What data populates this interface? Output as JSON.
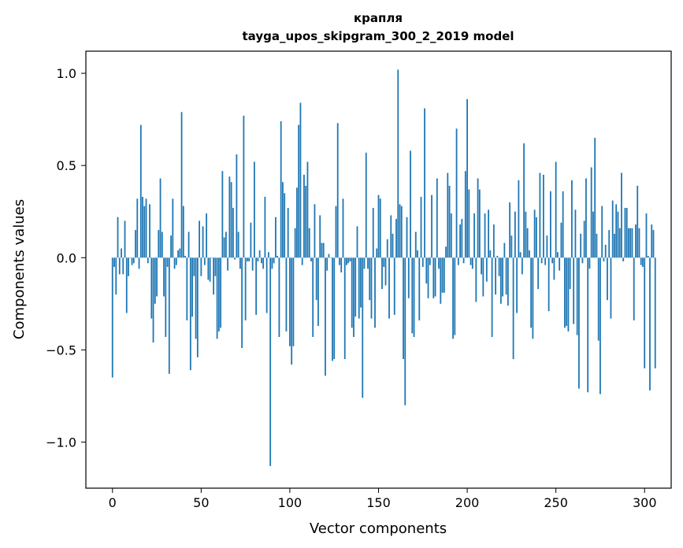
{
  "chart_data": {
    "type": "bar",
    "title": "крапля",
    "subtitle": "tayga_upos_skipgram_300_2_2019 model",
    "xlabel": "Vector components",
    "ylabel": "Components values",
    "xlim": [
      -15,
      315
    ],
    "ylim": [
      -1.25,
      1.12
    ],
    "xticks": [
      0,
      50,
      100,
      150,
      200,
      250,
      300
    ],
    "yticks": [
      -1.0,
      -0.5,
      0.0,
      0.5,
      1.0
    ],
    "xtick_labels": [
      "0",
      "50",
      "100",
      "150",
      "200",
      "250",
      "300"
    ],
    "ytick_labels": [
      "−1.0",
      "−0.5",
      "0.0",
      "0.5",
      "1.0"
    ],
    "bar_color": "#1f77b4",
    "grid": false,
    "values": [
      -0.65,
      -0.05,
      -0.2,
      0.22,
      -0.09,
      0.05,
      -0.09,
      0.2,
      -0.3,
      -0.1,
      0.0,
      -0.04,
      -0.03,
      0.15,
      0.32,
      -0.06,
      0.72,
      0.33,
      0.28,
      0.32,
      -0.03,
      0.29,
      -0.33,
      -0.46,
      -0.25,
      -0.21,
      0.15,
      0.43,
      0.14,
      -0.21,
      -0.43,
      -0.05,
      -0.63,
      0.12,
      0.32,
      -0.06,
      -0.04,
      0.04,
      0.05,
      0.79,
      0.28,
      0.01,
      -0.34,
      0.14,
      -0.61,
      -0.32,
      -0.1,
      -0.44,
      -0.54,
      0.2,
      -0.1,
      0.17,
      -0.04,
      0.24,
      -0.12,
      -0.13,
      0.0,
      -0.2,
      -0.1,
      -0.44,
      -0.4,
      -0.38,
      0.47,
      0.11,
      0.14,
      -0.07,
      0.44,
      0.41,
      0.27,
      -0.01,
      0.56,
      0.14,
      -0.06,
      -0.49,
      0.77,
      -0.34,
      -0.02,
      -0.02,
      0.19,
      -0.07,
      0.52,
      -0.31,
      -0.02,
      0.04,
      -0.03,
      -0.06,
      0.33,
      -0.3,
      0.03,
      -1.13,
      -0.06,
      -0.03,
      0.22,
      0.01,
      -0.43,
      0.74,
      0.41,
      0.35,
      -0.4,
      0.27,
      -0.48,
      -0.58,
      -0.48,
      0.16,
      0.38,
      0.72,
      0.84,
      -0.04,
      0.45,
      0.39,
      0.52,
      0.16,
      -0.02,
      -0.43,
      0.29,
      -0.23,
      -0.37,
      0.23,
      0.08,
      0.08,
      -0.64,
      -0.07,
      0.02,
      0.0,
      -0.56,
      -0.55,
      0.28,
      0.73,
      -0.04,
      -0.08,
      0.32,
      -0.55,
      -0.04,
      -0.03,
      -0.02,
      -0.38,
      -0.43,
      -0.32,
      0.17,
      -0.33,
      -0.27,
      -0.76,
      -0.06,
      0.57,
      -0.06,
      -0.23,
      -0.33,
      0.27,
      -0.38,
      0.05,
      0.34,
      0.32,
      -0.17,
      -0.05,
      -0.15,
      0.1,
      -0.33,
      0.23,
      0.13,
      -0.31,
      0.21,
      1.02,
      0.29,
      0.28,
      -0.55,
      -0.8,
      0.22,
      -0.22,
      0.58,
      -0.41,
      -0.43,
      0.14,
      0.04,
      -0.34,
      0.33,
      -0.05,
      0.81,
      -0.14,
      -0.22,
      -0.04,
      0.34,
      -0.22,
      -0.21,
      0.43,
      -0.06,
      -0.25,
      -0.19,
      -0.19,
      0.06,
      0.46,
      0.39,
      0.24,
      -0.44,
      -0.42,
      0.7,
      -0.04,
      0.18,
      0.21,
      -0.03,
      0.47,
      0.86,
      0.37,
      -0.04,
      -0.06,
      0.24,
      -0.24,
      0.43,
      0.37,
      -0.09,
      -0.21,
      0.24,
      -0.13,
      0.26,
      0.04,
      -0.43,
      0.18,
      -0.2,
      0.01,
      -0.1,
      -0.25,
      -0.21,
      0.08,
      -0.2,
      -0.26,
      0.3,
      0.12,
      -0.55,
      0.25,
      -0.3,
      0.42,
      0.03,
      -0.09,
      0.62,
      0.25,
      0.16,
      0.04,
      -0.38,
      -0.44,
      0.26,
      0.22,
      -0.17,
      0.46,
      -0.03,
      0.45,
      -0.04,
      0.12,
      -0.29,
      0.36,
      -0.03,
      -0.12,
      0.52,
      0.03,
      -0.07,
      0.19,
      0.36,
      -0.38,
      -0.37,
      -0.4,
      -0.17,
      0.42,
      -0.36,
      0.26,
      -0.42,
      -0.71,
      0.13,
      -0.03,
      0.2,
      0.43,
      -0.73,
      -0.06,
      0.49,
      0.25,
      0.65,
      0.13,
      -0.45,
      -0.74,
      0.28,
      -0.02,
      0.07,
      -0.23,
      0.15,
      -0.33,
      0.31,
      0.13,
      0.29,
      0.25,
      0.16,
      0.46,
      -0.02,
      0.27,
      0.27,
      0.16,
      0.16,
      0.16,
      -0.34,
      0.18,
      0.39,
      0.16,
      -0.04,
      -0.05,
      -0.6,
      0.24,
      0.01,
      -0.72,
      0.18,
      0.15,
      -0.6
    ]
  }
}
